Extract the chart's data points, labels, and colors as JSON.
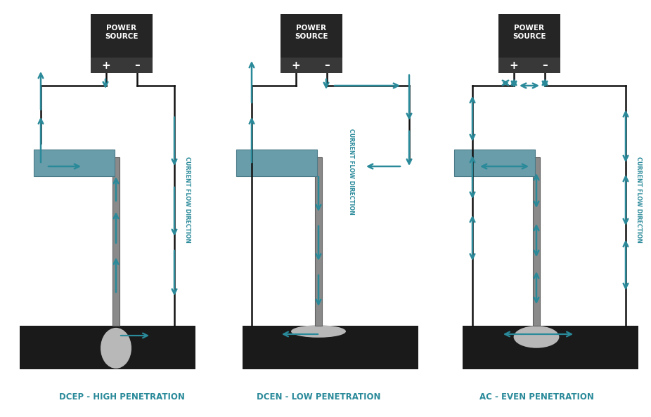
{
  "bg_color": "#ffffff",
  "teal": "#2a8a9a",
  "dark_gray": "#252525",
  "dark_gray2": "#383838",
  "rod_gray": "#8a8a8a",
  "rod_edge": "#606060",
  "workpiece_color": "#1a1a1a",
  "weld_color": "#b8b8b8",
  "electrode_color": "#6a9daa",
  "electrode_edge": "#4a7a88",
  "wire_color": "#111111",
  "labels": [
    "DCEP - HIGH PENETRATION",
    "DCEN - LOW PENETRATION",
    "AC - EVEN PENETRATION"
  ],
  "label_fontsize": 8.5
}
